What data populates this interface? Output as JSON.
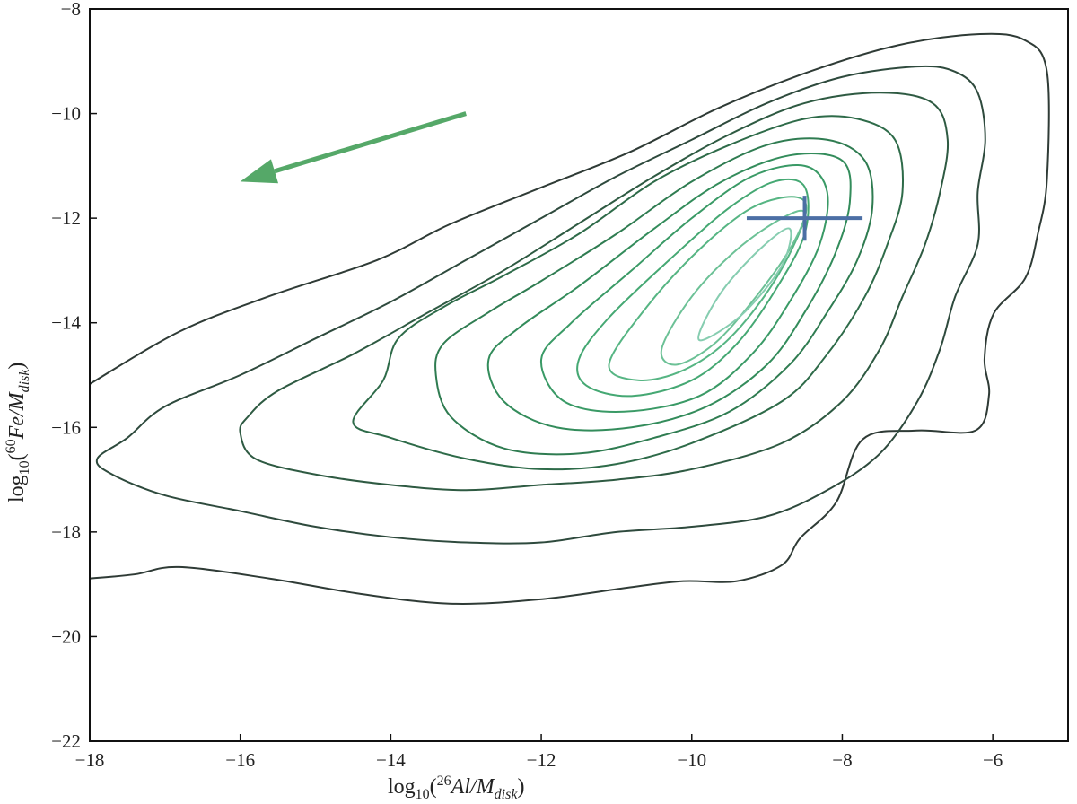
{
  "chart_data": {
    "type": "contour",
    "xlabel": [
      "log",
      "10",
      "(",
      "26",
      "Al/M",
      "disk",
      ")"
    ],
    "ylabel": [
      "log",
      "10",
      "(",
      "60",
      "Fe/M",
      "disk",
      ")"
    ],
    "xlim": [
      -18,
      -5
    ],
    "ylim": [
      -22,
      -8
    ],
    "xticks": [
      {
        "value": -18,
        "label": "−18"
      },
      {
        "value": -16,
        "label": "−16"
      },
      {
        "value": -14,
        "label": "−14"
      },
      {
        "value": -12,
        "label": "−12"
      },
      {
        "value": -10,
        "label": "−10"
      },
      {
        "value": -8,
        "label": "−8"
      },
      {
        "value": -6,
        "label": "−6"
      }
    ],
    "yticks": [
      {
        "value": -22,
        "label": "−22"
      },
      {
        "value": -20,
        "label": "−20"
      },
      {
        "value": -18,
        "label": "−18"
      },
      {
        "value": -16,
        "label": "−16"
      },
      {
        "value": -14,
        "label": "−14"
      },
      {
        "value": -12,
        "label": "−12"
      },
      {
        "value": -10,
        "label": "−10"
      },
      {
        "value": -8,
        "label": "−8"
      }
    ],
    "series": [
      {
        "color": "#2f3b36",
        "closed": false,
        "x": [
          -18,
          -16.81,
          -15.61,
          -14.18,
          -13.22,
          -12.03,
          -10.83,
          -9.64,
          -8.44,
          -7.25,
          -6.17,
          -5.57,
          -5.28,
          -5.28,
          -5.4,
          -5.57,
          -5.99,
          -6.11,
          -6.05,
          -6.23,
          -7.01,
          -7.73,
          -8.08,
          -8.56,
          -8.8,
          -9.4,
          -10.11,
          -10.83,
          -12.03,
          -13.22,
          -14.42,
          -15.61,
          -16.81,
          -17.4,
          -18
        ],
        "y": [
          -15.17,
          -14.17,
          -13.49,
          -12.8,
          -12.12,
          -11.43,
          -10.74,
          -9.89,
          -9.2,
          -8.69,
          -8.48,
          -8.6,
          -9.2,
          -11.26,
          -12.29,
          -13.15,
          -13.83,
          -14.69,
          -15.38,
          -16.06,
          -16.06,
          -16.23,
          -17.43,
          -18.12,
          -18.63,
          -18.94,
          -18.94,
          -19.06,
          -19.29,
          -19.37,
          -19.18,
          -18.89,
          -18.67,
          -18.81,
          -18.89
        ]
      },
      {
        "color": "#2e4a3d",
        "closed": true,
        "x": [
          -17.9,
          -17.5,
          -17,
          -16,
          -15,
          -14,
          -13,
          -12,
          -11,
          -10,
          -9,
          -8,
          -7,
          -6.5,
          -6.2,
          -6.1,
          -6.2,
          -6.2,
          -6.5,
          -6.7,
          -7,
          -7.5,
          -8.2,
          -9,
          -10,
          -11,
          -12,
          -13,
          -14,
          -15,
          -16,
          -17,
          -17.7
        ],
        "y": [
          -16.6,
          -16.2,
          -15.6,
          -15,
          -14.3,
          -13.6,
          -12.8,
          -12,
          -11.2,
          -10.5,
          -9.8,
          -9.3,
          -9.1,
          -9.2,
          -9.6,
          -10.5,
          -11.5,
          -12.5,
          -13.5,
          -14.5,
          -15.5,
          -16.5,
          -17.2,
          -17.7,
          -17.9,
          -18,
          -18.2,
          -18.2,
          -18.1,
          -17.9,
          -17.6,
          -17.3,
          -16.9
        ]
      },
      {
        "color": "#2e5a42",
        "closed": true,
        "x": [
          -16,
          -15.9,
          -15.5,
          -14.5,
          -13.5,
          -12.5,
          -11.5,
          -10.5,
          -9.5,
          -8.5,
          -7.5,
          -6.8,
          -6.6,
          -6.7,
          -6.9,
          -7.2,
          -7.5,
          -8,
          -8.8,
          -10,
          -11,
          -12,
          -13,
          -14,
          -15,
          -15.8
        ],
        "y": [
          -16.1,
          -15.8,
          -15.3,
          -14.6,
          -13.8,
          -13,
          -12.1,
          -11.2,
          -10.4,
          -9.8,
          -9.6,
          -9.8,
          -10.5,
          -11.5,
          -12.5,
          -13.5,
          -14.5,
          -15.5,
          -16.3,
          -16.8,
          -17,
          -17.1,
          -17.2,
          -17.1,
          -16.9,
          -16.6
        ]
      },
      {
        "color": "#2e6b49",
        "closed": true,
        "x": [
          -14.5,
          -14.1,
          -13.9,
          -13.3,
          -12.5,
          -11.5,
          -10.5,
          -9.5,
          -8.5,
          -7.8,
          -7.3,
          -7.2,
          -7.4,
          -7.7,
          -8.2,
          -8.8,
          -10,
          -11,
          -12,
          -13,
          -14
        ],
        "y": [
          -15.9,
          -15.1,
          -14.3,
          -13.7,
          -13.1,
          -12.3,
          -11.3,
          -10.6,
          -10.1,
          -10.1,
          -10.5,
          -11.5,
          -12.5,
          -13.5,
          -14.6,
          -15.5,
          -16.3,
          -16.7,
          -16.8,
          -16.6,
          -16.2
        ]
      },
      {
        "color": "#2f7c51",
        "closed": true,
        "x": [
          -13.4,
          -13.3,
          -12.7,
          -12,
          -11,
          -10,
          -9,
          -8.2,
          -7.7,
          -7.6,
          -7.8,
          -8.2,
          -8.7,
          -9.5,
          -10.5,
          -11.5,
          -12.5,
          -13.2
        ],
        "y": [
          -15,
          -14.4,
          -13.8,
          -13.2,
          -12.3,
          -11.3,
          -10.6,
          -10.5,
          -10.9,
          -11.8,
          -12.8,
          -13.8,
          -14.8,
          -15.7,
          -16.2,
          -16.5,
          -16.4,
          -15.8
        ]
      },
      {
        "color": "#338c5b",
        "closed": true,
        "x": [
          -12.7,
          -12.3,
          -11.5,
          -10.5,
          -9.6,
          -8.7,
          -8,
          -7.9,
          -8.1,
          -8.5,
          -9,
          -9.8,
          -10.8,
          -11.8,
          -12.5
        ],
        "y": [
          -14.7,
          -14.1,
          -13.3,
          -12.2,
          -11.3,
          -10.8,
          -10.9,
          -11.7,
          -12.7,
          -13.8,
          -14.8,
          -15.6,
          -16,
          -16,
          -15.5
        ]
      },
      {
        "color": "#3a9a66",
        "closed": true,
        "x": [
          -12,
          -11.6,
          -10.8,
          -10,
          -9.2,
          -8.5,
          -8.2,
          -8.3,
          -8.7,
          -9.2,
          -9.9,
          -10.9,
          -11.7
        ],
        "y": [
          -14.7,
          -14,
          -13,
          -12,
          -11.2,
          -11,
          -11.5,
          -12.5,
          -13.6,
          -14.6,
          -15.4,
          -15.7,
          -15.5
        ]
      },
      {
        "color": "#45a873",
        "closed": true,
        "x": [
          -11.5,
          -11.1,
          -10.3,
          -9.5,
          -8.9,
          -8.5,
          -8.5,
          -8.9,
          -9.4,
          -10,
          -10.8,
          -11.4
        ],
        "y": [
          -14.7,
          -13.9,
          -12.8,
          -11.8,
          -11.3,
          -11.4,
          -12.3,
          -13.4,
          -14.4,
          -15.1,
          -15.4,
          -15.2
        ]
      },
      {
        "color": "#56b583",
        "closed": true,
        "x": [
          -11.1,
          -10.6,
          -9.9,
          -9.2,
          -8.6,
          -8.5,
          -8.9,
          -9.5,
          -10.1,
          -10.7
        ],
        "y": [
          -14.8,
          -13.7,
          -12.6,
          -11.8,
          -11.6,
          -12,
          -13.2,
          -14.3,
          -14.9,
          -15.1
        ]
      },
      {
        "color": "#6cc196",
        "closed": true,
        "x": [
          -10.4,
          -10,
          -9.4,
          -8.8,
          -8.5,
          -8.7,
          -9.2,
          -9.7,
          -10.2
        ],
        "y": [
          -14.5,
          -13.5,
          -12.6,
          -12,
          -11.9,
          -12.6,
          -13.6,
          -14.4,
          -14.8
        ]
      },
      {
        "color": "#86cdb0",
        "closed": true,
        "x": [
          -9.9,
          -9.6,
          -9.1,
          -8.7,
          -8.8,
          -9.3,
          -9.8
        ],
        "y": [
          -14.2,
          -13.4,
          -12.6,
          -12.2,
          -12.9,
          -13.8,
          -14.3
        ]
      }
    ],
    "marker": {
      "x": -8.5,
      "y": -12,
      "xerr": 0.77,
      "yerr": 0.43,
      "color": "#4c6fa5"
    },
    "arrow": {
      "x": [
        -13,
        -16
      ],
      "y": [
        -10,
        -11.3
      ],
      "color": "#55a868"
    }
  }
}
